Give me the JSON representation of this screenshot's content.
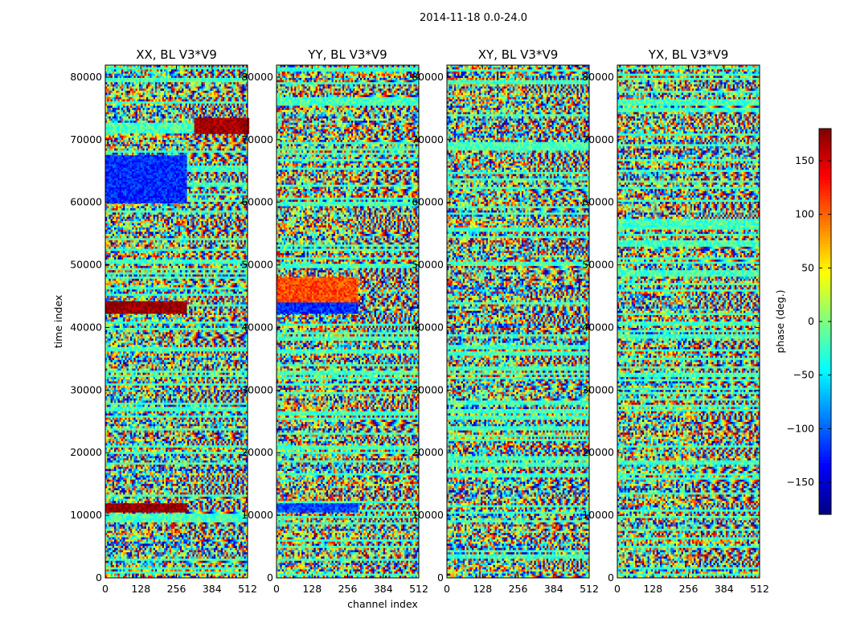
{
  "figure_title": "2014-11-18 0.0-24.0",
  "colors": {
    "colormap": "jet",
    "frame": "#000000",
    "background": "#ffffff"
  },
  "chart_data": {
    "type": "heatmap",
    "title": "2014-11-18 0.0-24.0",
    "xlabel": "channel index",
    "ylabel": "time index",
    "xlim": [
      0,
      512
    ],
    "ylim": [
      0,
      81920
    ],
    "xticks": [
      "0",
      "128",
      "256",
      "384",
      "512"
    ],
    "yticks": [
      "0",
      "10000",
      "20000",
      "30000",
      "40000",
      "50000",
      "60000",
      "70000",
      "80000"
    ],
    "panels": [
      {
        "title": "XX, BL V3*V9",
        "polarization": "XX"
      },
      {
        "title": "YY, BL V3*V9",
        "polarization": "YY"
      },
      {
        "title": "XY, BL V3*V9",
        "polarization": "XY"
      },
      {
        "title": "YX, BL V3*V9",
        "polarization": "YX"
      }
    ],
    "colorbar": {
      "label": "phase (deg.)",
      "range": [
        -180,
        180
      ],
      "ticks": [
        "−150",
        "−100",
        "−50",
        "0",
        "50",
        "100",
        "150"
      ],
      "colormap": "jet"
    },
    "features": [
      {
        "panel": "XX",
        "time_range": [
          10500,
          11900
        ],
        "channel_range": [
          0,
          290
        ],
        "phase": 175,
        "note": "strong red band"
      },
      {
        "panel": "XX",
        "time_range": [
          42500,
          44200
        ],
        "channel_range": [
          0,
          290
        ],
        "phase": 175,
        "note": "strong red band"
      },
      {
        "panel": "XX",
        "time_range": [
          60000,
          67500
        ],
        "channel_range": [
          0,
          290
        ],
        "phase": -120,
        "note": "blue bands"
      },
      {
        "panel": "XX",
        "time_range": [
          71000,
          73500
        ],
        "channel_range": [
          320,
          512
        ],
        "phase": 170,
        "note": "red patch"
      },
      {
        "panel": "YY",
        "time_range": [
          10500,
          11900
        ],
        "channel_range": [
          0,
          290
        ],
        "phase": -110,
        "note": "blue band"
      },
      {
        "panel": "YY",
        "time_range": [
          42500,
          44200
        ],
        "channel_range": [
          0,
          290
        ],
        "phase": -120,
        "note": "blue band"
      },
      {
        "panel": "YY",
        "time_range": [
          44200,
          48000
        ],
        "channel_range": [
          0,
          290
        ],
        "phase": 110,
        "note": "orange patch"
      }
    ]
  }
}
